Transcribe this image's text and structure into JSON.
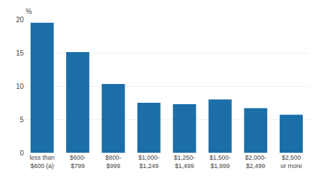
{
  "chart_data": {
    "type": "bar",
    "categories": [
      "less than\n$600 (a)",
      "$600-\n$799",
      "$800-\n$999",
      "$1,000-\n$1,249",
      "$1,250-\n$1,499",
      "$1,500-\n$1,999",
      "$2,000-\n$2,499",
      "$2,500\nor more"
    ],
    "values": [
      19.5,
      15.1,
      10.3,
      7.5,
      7.3,
      8.0,
      6.7,
      5.7
    ],
    "color": "#1b6ea8",
    "ylabel": "%",
    "ylim": [
      0,
      20
    ],
    "yticks": [
      0,
      5,
      10,
      15,
      20
    ],
    "grid": true
  }
}
